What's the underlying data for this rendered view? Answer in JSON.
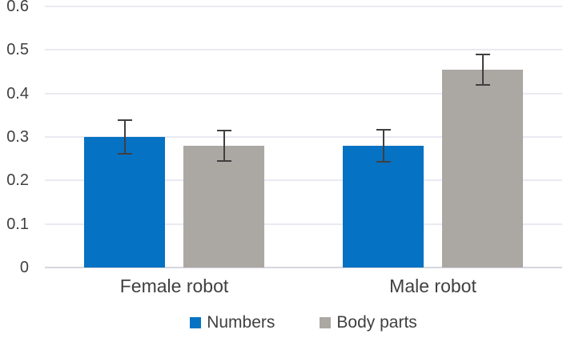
{
  "chart_data": {
    "type": "bar",
    "title": "",
    "xlabel": "",
    "ylabel": "",
    "categories": [
      "Female robot",
      "Male robot"
    ],
    "series": [
      {
        "name": "Numbers",
        "color": "#0672C3",
        "values": [
          0.3,
          0.28
        ],
        "errors": [
          0.038,
          0.037
        ]
      },
      {
        "name": "Body parts",
        "color": "#ABA7A3",
        "values": [
          0.28,
          0.455
        ],
        "errors": [
          0.035,
          0.035
        ]
      }
    ],
    "ylim": [
      0,
      0.6
    ],
    "yticks": [
      "0",
      "0.1",
      "0.2",
      "0.3",
      "0.4",
      "0.5",
      "0.6"
    ],
    "grid": true,
    "legend_position": "bottom",
    "error_bars": true,
    "colors": {
      "gridline": "#E9EAF3",
      "axis_line": "#D6D6DE",
      "error_bar": "#404040",
      "text": "#404040",
      "background": "#FFFFFF"
    }
  }
}
